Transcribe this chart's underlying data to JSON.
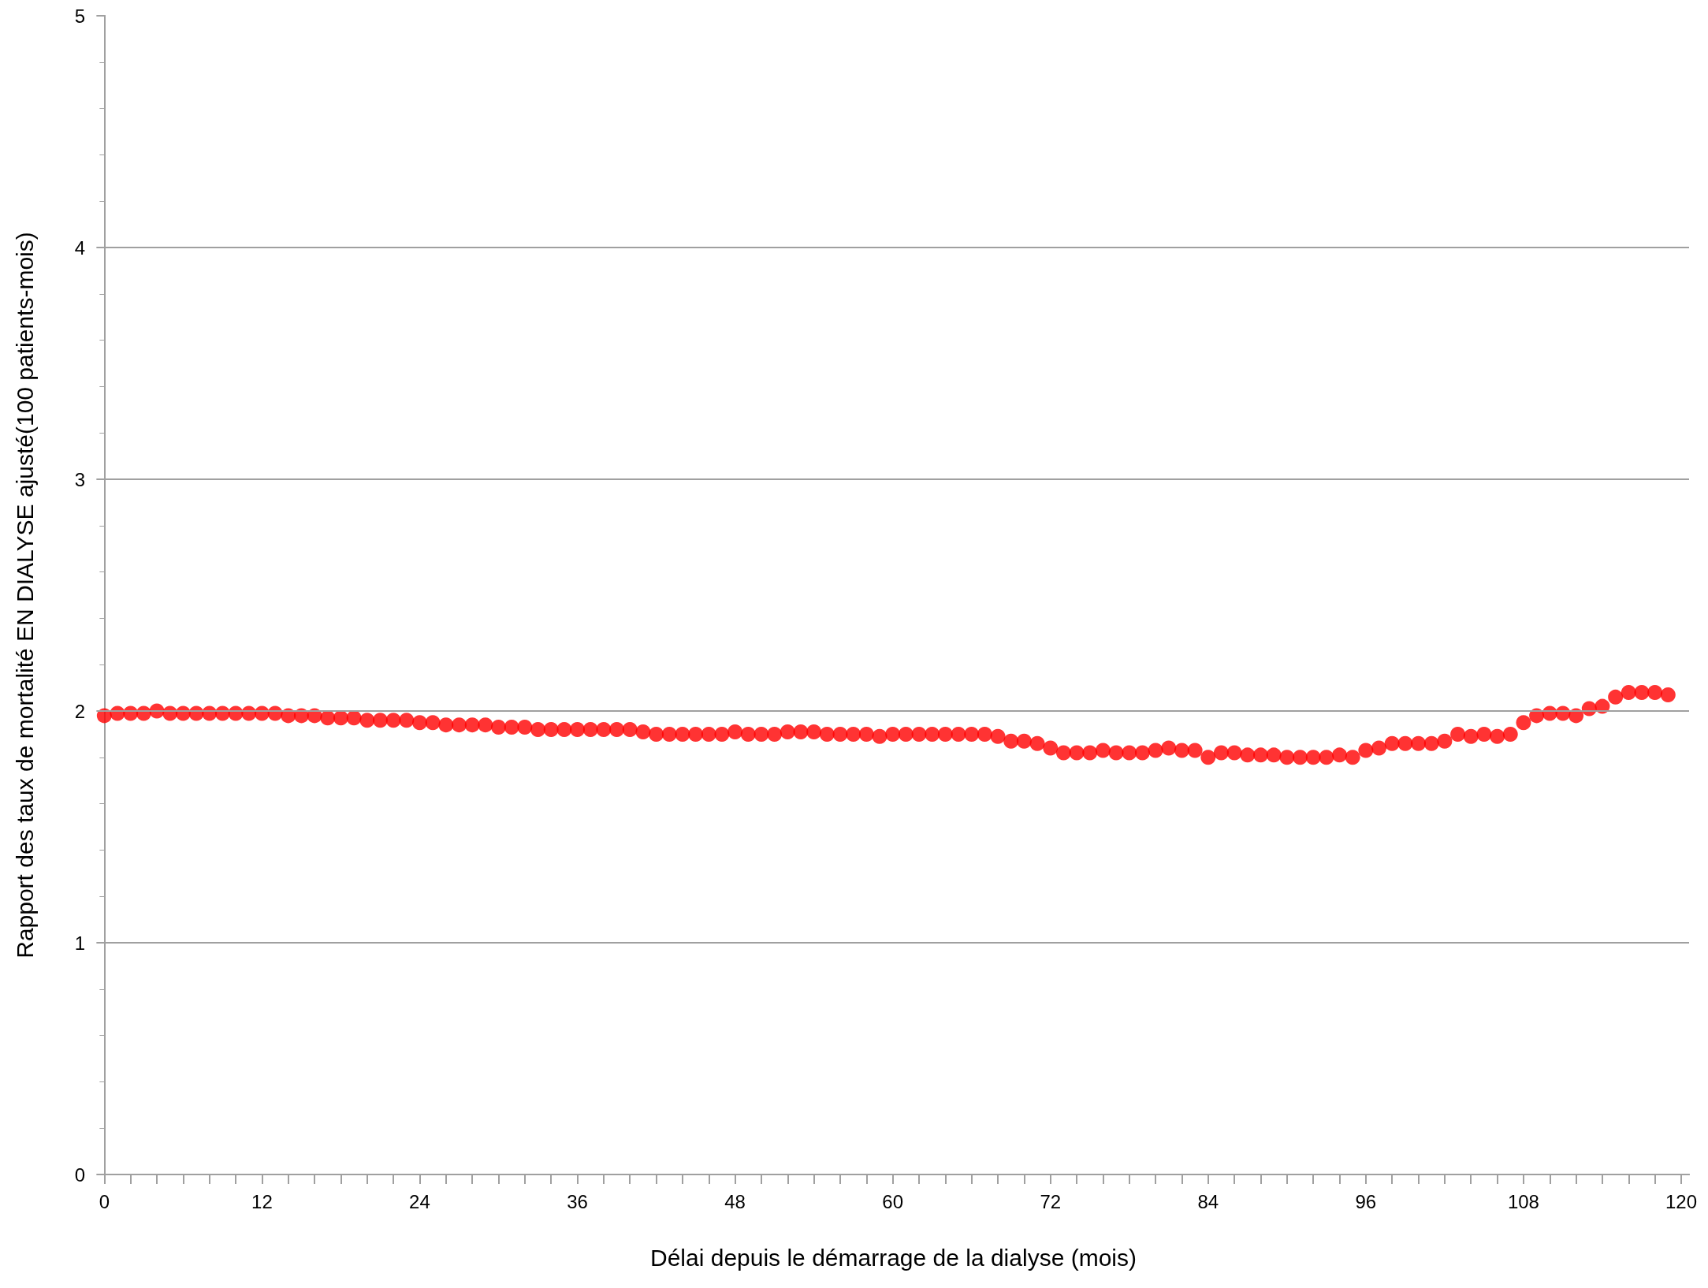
{
  "chart_data": {
    "type": "scatter",
    "xlabel": "Délai depuis le démarrage de la dialyse (mois)",
    "ylabel": "Rapport des taux de mortalité EN DIALYSE ajusté(100 patients-mois)",
    "x": [
      0,
      1,
      2,
      3,
      4,
      5,
      6,
      7,
      8,
      9,
      10,
      11,
      12,
      13,
      14,
      15,
      16,
      17,
      18,
      19,
      20,
      21,
      22,
      23,
      24,
      25,
      26,
      27,
      28,
      29,
      30,
      31,
      32,
      33,
      34,
      35,
      36,
      37,
      38,
      39,
      40,
      41,
      42,
      43,
      44,
      45,
      46,
      47,
      48,
      49,
      50,
      51,
      52,
      53,
      54,
      55,
      56,
      57,
      58,
      59,
      60,
      61,
      62,
      63,
      64,
      65,
      66,
      67,
      68,
      69,
      70,
      71,
      72,
      73,
      74,
      75,
      76,
      77,
      78,
      79,
      80,
      81,
      82,
      83,
      84,
      85,
      86,
      87,
      88,
      89,
      90,
      91,
      92,
      93,
      94,
      95,
      96,
      97,
      98,
      99,
      100,
      101,
      102,
      103,
      104,
      105,
      106,
      107,
      108,
      109,
      110,
      111,
      112,
      113,
      114,
      115,
      116,
      117,
      118,
      119
    ],
    "series": [
      {
        "color": "#ff0000",
        "values": [
          1.98,
          1.99,
          1.99,
          1.99,
          2.0,
          1.99,
          1.99,
          1.99,
          1.99,
          1.99,
          1.99,
          1.99,
          1.99,
          1.99,
          1.98,
          1.98,
          1.98,
          1.97,
          1.97,
          1.97,
          1.96,
          1.96,
          1.96,
          1.96,
          1.95,
          1.95,
          1.94,
          1.94,
          1.94,
          1.94,
          1.93,
          1.93,
          1.93,
          1.92,
          1.92,
          1.92,
          1.92,
          1.92,
          1.92,
          1.92,
          1.92,
          1.91,
          1.9,
          1.9,
          1.9,
          1.9,
          1.9,
          1.9,
          1.91,
          1.9,
          1.9,
          1.9,
          1.91,
          1.91,
          1.91,
          1.9,
          1.9,
          1.9,
          1.9,
          1.89,
          1.9,
          1.9,
          1.9,
          1.9,
          1.9,
          1.9,
          1.9,
          1.9,
          1.89,
          1.87,
          1.87,
          1.86,
          1.84,
          1.82,
          1.82,
          1.82,
          1.83,
          1.82,
          1.82,
          1.82,
          1.83,
          1.84,
          1.83,
          1.83,
          1.8,
          1.82,
          1.82,
          1.81,
          1.81,
          1.81,
          1.8,
          1.8,
          1.8,
          1.8,
          1.81,
          1.8,
          1.83,
          1.84,
          1.86,
          1.86,
          1.86,
          1.86,
          1.87,
          1.9,
          1.89,
          1.9,
          1.89,
          1.9,
          1.95,
          1.98,
          1.99,
          1.99,
          1.98,
          2.01,
          2.02,
          2.06,
          2.08,
          2.08,
          2.08,
          2.07
        ]
      }
    ],
    "marker": "circle",
    "xlim": [
      -0.5,
      120.6
    ],
    "ylim": [
      0,
      5
    ],
    "xticks": [
      0,
      {
        "value": 2,
        "label": null
      },
      {
        "value": 4,
        "label": null
      },
      {
        "value": 6,
        "label": null
      },
      {
        "value": 8,
        "label": null
      },
      {
        "value": 10,
        "label": null
      },
      12,
      {
        "value": 14,
        "label": null
      },
      {
        "value": 16,
        "label": null
      },
      {
        "value": 18,
        "label": null
      },
      {
        "value": 20,
        "label": null
      },
      {
        "value": 22,
        "label": null
      },
      24,
      {
        "value": 26,
        "label": null
      },
      {
        "value": 28,
        "label": null
      },
      {
        "value": 30,
        "label": null
      },
      {
        "value": 32,
        "label": null
      },
      {
        "value": 34,
        "label": null
      },
      36,
      {
        "value": 38,
        "label": null
      },
      {
        "value": 40,
        "label": null
      },
      {
        "value": 42,
        "label": null
      },
      {
        "value": 44,
        "label": null
      },
      {
        "value": 46,
        "label": null
      },
      48,
      {
        "value": 50,
        "label": null
      },
      {
        "value": 52,
        "label": null
      },
      {
        "value": 54,
        "label": null
      },
      {
        "value": 56,
        "label": null
      },
      {
        "value": 58,
        "label": null
      },
      60,
      {
        "value": 62,
        "label": null
      },
      {
        "value": 64,
        "label": null
      },
      {
        "value": 66,
        "label": null
      },
      {
        "value": 68,
        "label": null
      },
      {
        "value": 70,
        "label": null
      },
      72,
      {
        "value": 74,
        "label": null
      },
      {
        "value": 76,
        "label": null
      },
      {
        "value": 78,
        "label": null
      },
      {
        "value": 80,
        "label": null
      },
      {
        "value": 82,
        "label": null
      },
      84,
      {
        "value": 86,
        "label": null
      },
      {
        "value": 88,
        "label": null
      },
      {
        "value": 90,
        "label": null
      },
      {
        "value": 92,
        "label": null
      },
      {
        "value": 94,
        "label": null
      },
      96,
      {
        "value": 98,
        "label": null
      },
      {
        "value": 100,
        "label": null
      },
      {
        "value": 102,
        "label": null
      },
      {
        "value": 104,
        "label": null
      },
      {
        "value": 106,
        "label": null
      },
      108,
      {
        "value": 110,
        "label": null
      },
      {
        "value": 112,
        "label": null
      },
      {
        "value": 114,
        "label": null
      },
      {
        "value": 116,
        "label": null
      },
      {
        "value": 118,
        "label": null
      },
      120
    ],
    "yticks": [
      0,
      1,
      2,
      3,
      4,
      5
    ],
    "grid": "y"
  }
}
